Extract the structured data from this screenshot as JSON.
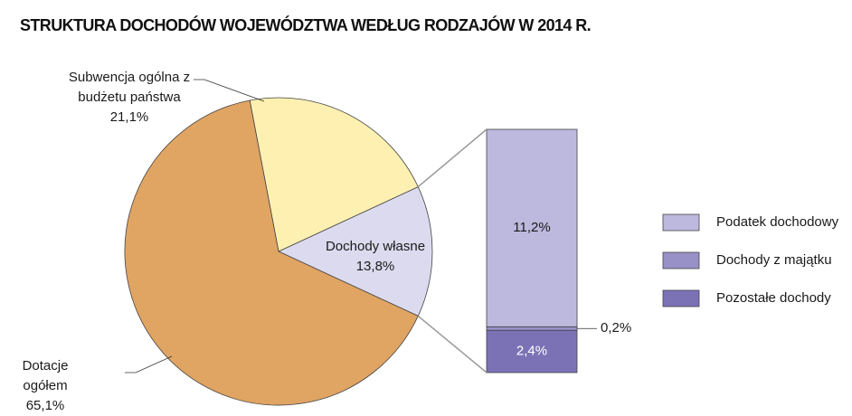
{
  "title": "STRUKTURA DOCHODÓW WOJEWÓDZTWA WEDŁUG RODZAJÓW W 2014 R.",
  "chart_data": [
    {
      "type": "pie",
      "categories": [
        "Dochody własne",
        "Subwencja ogólna z budżetu państwa",
        "Dotacje ogółem"
      ],
      "values": [
        13.8,
        21.1,
        65.1
      ],
      "value_labels": [
        "13,8%",
        "21,1%",
        "65,1%"
      ],
      "colors": [
        "#dcdaee",
        "#fdf0b1",
        "#e0a463"
      ]
    },
    {
      "type": "bar",
      "stacked": true,
      "series": [
        {
          "name": "Podatek dochodowy",
          "color": "#bdb8dd",
          "values": [
            11.2
          ],
          "value_labels": [
            "11,2%"
          ]
        },
        {
          "name": "Dochody z majątku",
          "color": "#9891c8",
          "values": [
            0.2
          ],
          "value_labels": [
            "0,2%"
          ]
        },
        {
          "name": "Pozostałe dochody",
          "color": "#7b72b6",
          "values": [
            2.4
          ],
          "value_labels": [
            "2,4%"
          ]
        }
      ]
    }
  ]
}
